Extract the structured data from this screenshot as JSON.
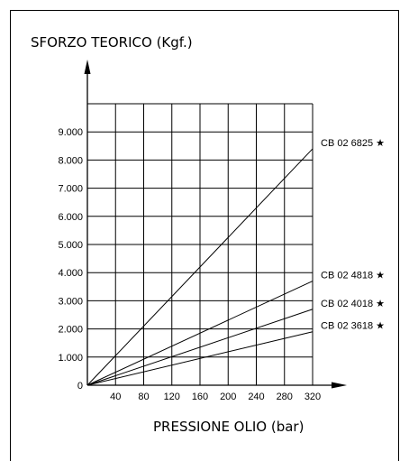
{
  "chart_data": {
    "type": "line",
    "title": "SFORZO TEORICO   (Kgf.)",
    "xlabel": "PRESSIONE OLIO    (bar)",
    "ylabel": "SFORZO TEORICO   (Kgf.)",
    "xlim": [
      0,
      320
    ],
    "ylim": [
      0,
      9000
    ],
    "grid": true,
    "x_ticks": [
      40,
      80,
      120,
      160,
      200,
      240,
      280,
      320
    ],
    "x_tick_labels": [
      "40",
      "80",
      "120",
      "160",
      "200",
      "240",
      "280",
      "320"
    ],
    "y_ticks": [
      0,
      1000,
      2000,
      3000,
      4000,
      5000,
      6000,
      7000,
      8000,
      9000
    ],
    "y_tick_labels": [
      "0",
      "1.000",
      "2.000",
      "3.000",
      "4.000",
      "5.000",
      "6.000",
      "7.000",
      "8.000",
      "9.000"
    ],
    "series": [
      {
        "name": "CB 02 6825 ★",
        "x": [
          0,
          320
        ],
        "y": [
          0,
          8400
        ]
      },
      {
        "name": "CB 02 4818 ★",
        "x": [
          0,
          320
        ],
        "y": [
          0,
          3700
        ]
      },
      {
        "name": "CB 02 4018 ★",
        "x": [
          0,
          320
        ],
        "y": [
          0,
          2700
        ]
      },
      {
        "name": "CB 02 3618 ★",
        "x": [
          0,
          320
        ],
        "y": [
          0,
          1900
        ]
      }
    ]
  }
}
